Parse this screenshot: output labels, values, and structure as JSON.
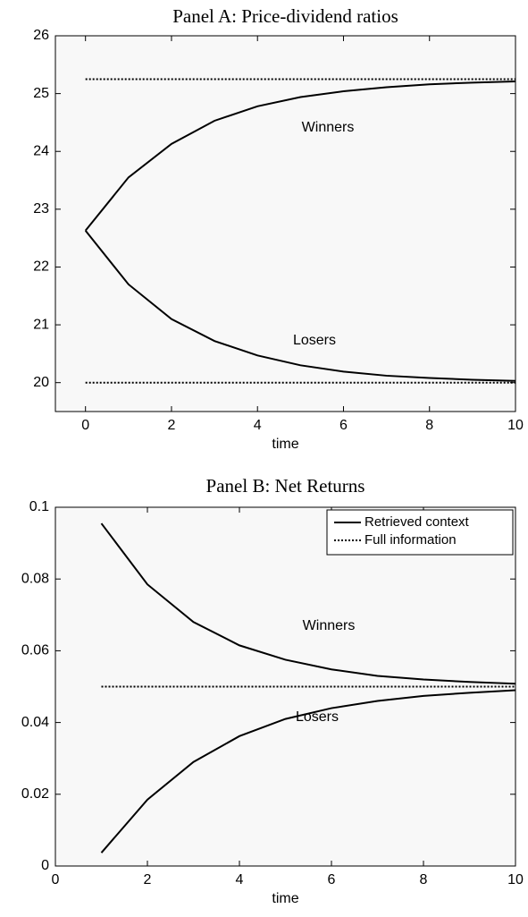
{
  "chart_data": [
    {
      "type": "line",
      "title": "Panel A: Price-dividend ratios",
      "xlabel": "time",
      "xlim": [
        -0.7,
        10
      ],
      "xticks": [
        0,
        2,
        4,
        6,
        8,
        10
      ],
      "ylim": [
        19.5,
        26
      ],
      "yticks": [
        20,
        21,
        22,
        23,
        24,
        25,
        26
      ],
      "annotations": [
        "Winners",
        "Losers"
      ],
      "series": [
        {
          "color": "#000000",
          "style": "solid",
          "x": [
            0,
            1,
            2,
            3,
            4,
            5,
            6,
            7,
            8,
            9,
            10
          ],
          "values": [
            22.63,
            23.55,
            24.13,
            24.53,
            24.78,
            24.94,
            25.04,
            25.11,
            25.16,
            25.19,
            25.21
          ]
        },
        {
          "color": "#000000",
          "style": "solid",
          "x": [
            0,
            1,
            2,
            3,
            4,
            5,
            6,
            7,
            8,
            9,
            10
          ],
          "values": [
            22.63,
            21.7,
            21.1,
            20.72,
            20.47,
            20.3,
            20.19,
            20.12,
            20.08,
            20.05,
            20.03
          ]
        },
        {
          "color": "#000000",
          "style": "dotted",
          "x": [
            0,
            10
          ],
          "values": [
            25.25,
            25.25
          ]
        },
        {
          "color": "#000000",
          "style": "dotted",
          "x": [
            0,
            10
          ],
          "values": [
            20,
            20
          ]
        }
      ]
    },
    {
      "type": "line",
      "title": "Panel B: Net Returns",
      "xlabel": "time",
      "xlim": [
        0,
        10
      ],
      "xticks": [
        0,
        2,
        4,
        6,
        8,
        10
      ],
      "ylim": [
        0,
        0.1
      ],
      "yticks": [
        0,
        0.02,
        0.04,
        0.06,
        0.08,
        0.1
      ],
      "annotations": [
        "Winners",
        "Losers"
      ],
      "legend": "northeast",
      "series": [
        {
          "name": "Retrieved context",
          "color": "#000000",
          "style": "solid",
          "x": [
            1,
            2,
            3,
            4,
            5,
            6,
            7,
            8,
            9,
            10
          ],
          "values": [
            0.0955,
            0.0785,
            0.068,
            0.0615,
            0.0575,
            0.0548,
            0.053,
            0.052,
            0.0513,
            0.0508
          ]
        },
        {
          "color": "#000000",
          "style": "solid",
          "x": [
            1,
            2,
            3,
            4,
            5,
            6,
            7,
            8,
            9,
            10
          ],
          "values": [
            0.0037,
            0.0185,
            0.029,
            0.0362,
            0.041,
            0.044,
            0.046,
            0.0474,
            0.0483,
            0.049
          ]
        },
        {
          "name": "Full information",
          "color": "#000000",
          "style": "dotted",
          "x": [
            1,
            10
          ],
          "values": [
            0.05,
            0.05
          ]
        }
      ]
    }
  ]
}
